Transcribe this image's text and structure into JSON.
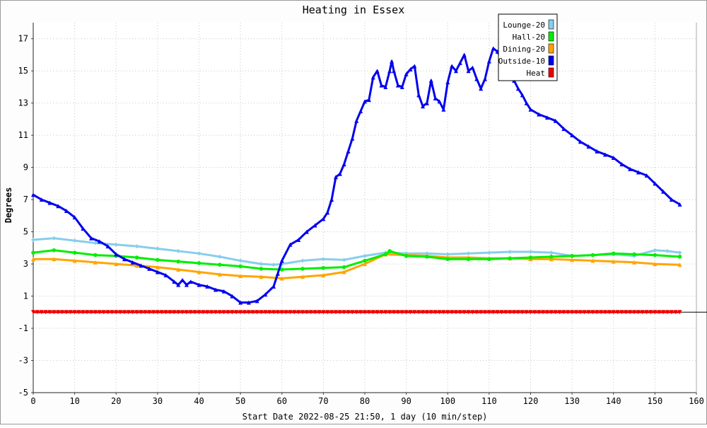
{
  "chart_data": {
    "type": "line",
    "title": "Heating in Essex",
    "xlabel": "Start Date 2022-08-25 21:50, 1 day (10 min/step)",
    "ylabel": "Degrees",
    "xlim": [
      0,
      160
    ],
    "ylim": [
      -5,
      18
    ],
    "x_ticks": [
      0,
      10,
      20,
      30,
      40,
      50,
      60,
      70,
      80,
      90,
      100,
      110,
      120,
      130,
      140,
      150,
      160
    ],
    "y_ticks": [
      -5,
      -3,
      -1,
      1,
      3,
      5,
      7,
      9,
      11,
      13,
      15,
      17
    ],
    "grid": true,
    "legend_position": "top-right",
    "series": [
      {
        "name": "Lounge-20",
        "color": "#87ceeb",
        "marker": "diamond",
        "points": [
          [
            0,
            4.5
          ],
          [
            5,
            4.6
          ],
          [
            10,
            4.45
          ],
          [
            15,
            4.3
          ],
          [
            20,
            4.2
          ],
          [
            25,
            4.1
          ],
          [
            30,
            3.95
          ],
          [
            35,
            3.8
          ],
          [
            40,
            3.65
          ],
          [
            45,
            3.45
          ],
          [
            50,
            3.2
          ],
          [
            55,
            3.0
          ],
          [
            58,
            2.95
          ],
          [
            60,
            3.0
          ],
          [
            65,
            3.2
          ],
          [
            70,
            3.3
          ],
          [
            75,
            3.25
          ],
          [
            80,
            3.5
          ],
          [
            85,
            3.7
          ],
          [
            90,
            3.65
          ],
          [
            95,
            3.65
          ],
          [
            100,
            3.6
          ],
          [
            105,
            3.65
          ],
          [
            110,
            3.7
          ],
          [
            115,
            3.75
          ],
          [
            120,
            3.75
          ],
          [
            125,
            3.7
          ],
          [
            130,
            3.5
          ],
          [
            135,
            3.55
          ],
          [
            140,
            3.6
          ],
          [
            145,
            3.5
          ],
          [
            150,
            3.85
          ],
          [
            153,
            3.8
          ],
          [
            156,
            3.7
          ]
        ]
      },
      {
        "name": "Hall-20",
        "color": "#00ee00",
        "marker": "circle",
        "points": [
          [
            0,
            3.7
          ],
          [
            5,
            3.85
          ],
          [
            10,
            3.7
          ],
          [
            15,
            3.55
          ],
          [
            20,
            3.5
          ],
          [
            25,
            3.4
          ],
          [
            30,
            3.25
          ],
          [
            35,
            3.15
          ],
          [
            40,
            3.05
          ],
          [
            45,
            2.95
          ],
          [
            50,
            2.85
          ],
          [
            55,
            2.7
          ],
          [
            60,
            2.65
          ],
          [
            65,
            2.7
          ],
          [
            70,
            2.75
          ],
          [
            75,
            2.8
          ],
          [
            80,
            3.2
          ],
          [
            85,
            3.6
          ],
          [
            86,
            3.8
          ],
          [
            90,
            3.5
          ],
          [
            95,
            3.45
          ],
          [
            100,
            3.3
          ],
          [
            105,
            3.3
          ],
          [
            110,
            3.3
          ],
          [
            115,
            3.35
          ],
          [
            120,
            3.4
          ],
          [
            125,
            3.45
          ],
          [
            130,
            3.5
          ],
          [
            135,
            3.55
          ],
          [
            140,
            3.65
          ],
          [
            145,
            3.6
          ],
          [
            150,
            3.55
          ],
          [
            156,
            3.45
          ]
        ]
      },
      {
        "name": "Dining-20",
        "color": "#ffa500",
        "marker": "triangle",
        "points": [
          [
            0,
            3.3
          ],
          [
            5,
            3.3
          ],
          [
            10,
            3.2
          ],
          [
            15,
            3.1
          ],
          [
            20,
            3.0
          ],
          [
            25,
            2.9
          ],
          [
            30,
            2.8
          ],
          [
            35,
            2.65
          ],
          [
            40,
            2.5
          ],
          [
            45,
            2.35
          ],
          [
            50,
            2.25
          ],
          [
            55,
            2.2
          ],
          [
            60,
            2.1
          ],
          [
            65,
            2.2
          ],
          [
            70,
            2.3
          ],
          [
            75,
            2.5
          ],
          [
            80,
            3.0
          ],
          [
            85,
            3.6
          ],
          [
            90,
            3.55
          ],
          [
            95,
            3.5
          ],
          [
            100,
            3.4
          ],
          [
            105,
            3.4
          ],
          [
            110,
            3.35
          ],
          [
            115,
            3.35
          ],
          [
            120,
            3.3
          ],
          [
            125,
            3.3
          ],
          [
            130,
            3.25
          ],
          [
            135,
            3.2
          ],
          [
            140,
            3.15
          ],
          [
            145,
            3.1
          ],
          [
            150,
            3.0
          ],
          [
            156,
            2.95
          ]
        ]
      },
      {
        "name": "Outside-10",
        "color": "#0000ee",
        "marker": "triangle",
        "points": [
          [
            0,
            7.3
          ],
          [
            2,
            7.0
          ],
          [
            4,
            6.8
          ],
          [
            6,
            6.6
          ],
          [
            8,
            6.3
          ],
          [
            10,
            5.9
          ],
          [
            12,
            5.2
          ],
          [
            14,
            4.6
          ],
          [
            16,
            4.4
          ],
          [
            18,
            4.1
          ],
          [
            20,
            3.6
          ],
          [
            22,
            3.3
          ],
          [
            24,
            3.1
          ],
          [
            26,
            2.9
          ],
          [
            28,
            2.7
          ],
          [
            30,
            2.5
          ],
          [
            32,
            2.3
          ],
          [
            34,
            1.9
          ],
          [
            35,
            1.7
          ],
          [
            36,
            2.0
          ],
          [
            37,
            1.7
          ],
          [
            38,
            1.9
          ],
          [
            40,
            1.7
          ],
          [
            42,
            1.6
          ],
          [
            44,
            1.4
          ],
          [
            46,
            1.3
          ],
          [
            48,
            1.0
          ],
          [
            50,
            0.6
          ],
          [
            52,
            0.6
          ],
          [
            54,
            0.7
          ],
          [
            56,
            1.1
          ],
          [
            58,
            1.6
          ],
          [
            59,
            2.4
          ],
          [
            60,
            3.2
          ],
          [
            62,
            4.2
          ],
          [
            64,
            4.5
          ],
          [
            66,
            5.0
          ],
          [
            68,
            5.4
          ],
          [
            70,
            5.8
          ],
          [
            71,
            6.2
          ],
          [
            72,
            7.0
          ],
          [
            73,
            8.4
          ],
          [
            74,
            8.6
          ],
          [
            75,
            9.2
          ],
          [
            76,
            10.0
          ],
          [
            77,
            10.8
          ],
          [
            78,
            11.9
          ],
          [
            79,
            12.5
          ],
          [
            80,
            13.1
          ],
          [
            81,
            13.2
          ],
          [
            82,
            14.6
          ],
          [
            83,
            15.0
          ],
          [
            84,
            14.1
          ],
          [
            85,
            14.0
          ],
          [
            86,
            15.0
          ],
          [
            86.5,
            15.6
          ],
          [
            87,
            15.0
          ],
          [
            88,
            14.1
          ],
          [
            89,
            14.0
          ],
          [
            90,
            14.8
          ],
          [
            91,
            15.1
          ],
          [
            92,
            15.3
          ],
          [
            93,
            13.5
          ],
          [
            94,
            12.8
          ],
          [
            95,
            13.0
          ],
          [
            96,
            14.4
          ],
          [
            97,
            13.3
          ],
          [
            98,
            13.1
          ],
          [
            99,
            12.6
          ],
          [
            100,
            14.3
          ],
          [
            101,
            15.3
          ],
          [
            102,
            15.0
          ],
          [
            103,
            15.5
          ],
          [
            104,
            16.0
          ],
          [
            105,
            15.0
          ],
          [
            106,
            15.2
          ],
          [
            107,
            14.5
          ],
          [
            108,
            13.9
          ],
          [
            109,
            14.5
          ],
          [
            110,
            15.6
          ],
          [
            111,
            16.4
          ],
          [
            112,
            16.2
          ],
          [
            113,
            15.7
          ],
          [
            114,
            15.4
          ],
          [
            115,
            14.8
          ],
          [
            116,
            14.4
          ],
          [
            117,
            13.9
          ],
          [
            118,
            13.5
          ],
          [
            119,
            13.0
          ],
          [
            120,
            12.6
          ],
          [
            122,
            12.3
          ],
          [
            124,
            12.1
          ],
          [
            126,
            11.9
          ],
          [
            128,
            11.4
          ],
          [
            130,
            11.0
          ],
          [
            132,
            10.6
          ],
          [
            134,
            10.3
          ],
          [
            136,
            10.0
          ],
          [
            138,
            9.8
          ],
          [
            140,
            9.6
          ],
          [
            142,
            9.2
          ],
          [
            144,
            8.9
          ],
          [
            146,
            8.7
          ],
          [
            148,
            8.5
          ],
          [
            150,
            8.0
          ],
          [
            152,
            7.5
          ],
          [
            154,
            7.0
          ],
          [
            156,
            6.7
          ]
        ]
      },
      {
        "name": "Heat",
        "color": "#ee0000",
        "marker": "triangle-down",
        "points": [
          [
            0,
            0
          ],
          [
            156,
            0
          ]
        ]
      }
    ]
  }
}
